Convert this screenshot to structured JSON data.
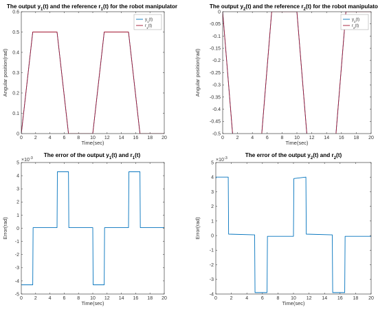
{
  "colors": {
    "output": "#0072BD",
    "reference": "#A2142F",
    "axes": "#404040"
  },
  "chart_data": [
    {
      "id": "p1",
      "type": "line",
      "title_parts": [
        "The output y",
        "1",
        "(t) and the reference r",
        "1",
        "(t) for the robot manipulator"
      ],
      "xlabel": "Time(sec)",
      "ylabel": "Angular position(rad)",
      "xlim": [
        0,
        20
      ],
      "ylim": [
        0,
        0.6
      ],
      "xticks": [
        0,
        2,
        4,
        6,
        8,
        10,
        12,
        14,
        16,
        18,
        20
      ],
      "yticks": [
        0,
        0.1,
        0.2,
        0.3,
        0.4,
        0.5,
        0.6
      ],
      "ytick_labels": [
        "0",
        "0.1",
        "0.2",
        "0.3",
        "0.4",
        "0.5",
        "0.6"
      ],
      "exponent": "",
      "legend": {
        "position": "top-right",
        "entries": [
          {
            "base": "y",
            "sub": "1",
            "suffix": "(t)",
            "color": "output"
          },
          {
            "base": "r",
            "sub": "1",
            "suffix": "(t)",
            "color": "reference"
          }
        ]
      },
      "series": [
        {
          "name": "y1(t)",
          "color": "output",
          "x": [
            0,
            1.6,
            5,
            6.6,
            10,
            11.6,
            15,
            16.6,
            20
          ],
          "y": [
            0,
            0.5,
            0.5,
            0,
            0,
            0.5,
            0.5,
            0,
            0
          ]
        },
        {
          "name": "r1(t)",
          "color": "reference",
          "x": [
            0,
            1.6,
            5,
            6.6,
            10,
            11.6,
            15,
            16.6,
            20
          ],
          "y": [
            0,
            0.5,
            0.5,
            0,
            0,
            0.5,
            0.5,
            0,
            0
          ]
        }
      ]
    },
    {
      "id": "p2",
      "type": "line",
      "title_parts": [
        "The output y",
        "2",
        "(t) and the reference r",
        "2",
        "(t) for the robot manipulator"
      ],
      "xlabel": "Time(sec)",
      "ylabel": "Angular position(rad)",
      "xlim": [
        0,
        20
      ],
      "ylim": [
        -0.5,
        0
      ],
      "xticks": [
        0,
        2,
        4,
        6,
        8,
        10,
        12,
        14,
        16,
        18,
        20
      ],
      "yticks": [
        -0.5,
        -0.45,
        -0.4,
        -0.35,
        -0.3,
        -0.25,
        -0.2,
        -0.15,
        -0.1,
        -0.05,
        0
      ],
      "ytick_labels": [
        "-0.5",
        "-0.45",
        "-0.4",
        "-0.35",
        "-0.3",
        "-0.25",
        "-0.2",
        "-0.15",
        "-0.1",
        "-0.05",
        "0"
      ],
      "exponent": "",
      "legend": {
        "position": "top-right",
        "entries": [
          {
            "base": "y",
            "sub": "2",
            "suffix": "(t)",
            "color": "output"
          },
          {
            "base": "r",
            "sub": "2",
            "suffix": "(t)",
            "color": "reference"
          }
        ]
      },
      "series": [
        {
          "name": "y2(t)",
          "color": "output",
          "x": [
            0,
            1.6,
            5,
            6.6,
            10,
            11.6,
            15,
            16.6,
            20
          ],
          "y": [
            0,
            -0.6,
            -0.6,
            0,
            0,
            -0.6,
            -0.6,
            0,
            0
          ]
        },
        {
          "name": "r2(t)",
          "color": "reference",
          "x": [
            0,
            1.6,
            5,
            6.6,
            10,
            11.6,
            15,
            16.6,
            20
          ],
          "y": [
            0,
            -0.6,
            -0.6,
            0,
            0,
            -0.6,
            -0.6,
            0,
            0
          ]
        }
      ]
    },
    {
      "id": "p3",
      "type": "line",
      "title_parts": [
        "The error of the output y",
        "1",
        "(t) and r",
        "1",
        "(t)"
      ],
      "xlabel": "Time(sec)",
      "ylabel": "Error(rad)",
      "xlim": [
        0,
        20
      ],
      "ylim": [
        -5,
        5
      ],
      "xticks": [
        0,
        2,
        4,
        6,
        8,
        10,
        12,
        14,
        16,
        18,
        20
      ],
      "yticks": [
        -5,
        -4,
        -3,
        -2,
        -1,
        0,
        1,
        2,
        3,
        4,
        5
      ],
      "ytick_labels": [
        "-5",
        "-4",
        "-3",
        "-2",
        "-1",
        "0",
        "1",
        "2",
        "3",
        "4",
        "5"
      ],
      "exponent": "-3",
      "legend": null,
      "series": [
        {
          "name": "e1(t)",
          "color": "output",
          "x": [
            0,
            0.05,
            1.6,
            1.65,
            5,
            5.05,
            6.6,
            6.65,
            10,
            10.05,
            11.6,
            11.65,
            15,
            15.05,
            16.6,
            16.65,
            20
          ],
          "y": [
            -4.3,
            -4.3,
            -4.3,
            0.05,
            0.05,
            4.3,
            4.3,
            0.05,
            0.05,
            -4.3,
            -4.3,
            0.05,
            0.05,
            4.3,
            4.3,
            0.05,
            0.05
          ]
        }
      ]
    },
    {
      "id": "p4",
      "type": "line",
      "title_parts": [
        "The error of the output y",
        "2",
        "(t) and r",
        "2",
        "(t)"
      ],
      "xlabel": "Time(sec)",
      "ylabel": "Error(rad)",
      "xlim": [
        0,
        20
      ],
      "ylim": [
        -4,
        5
      ],
      "xticks": [
        0,
        2,
        4,
        6,
        8,
        10,
        12,
        14,
        16,
        18,
        20
      ],
      "yticks": [
        -4,
        -3,
        -2,
        -1,
        0,
        1,
        2,
        3,
        4,
        5
      ],
      "ytick_labels": [
        "-4",
        "-3",
        "-2",
        "-1",
        "0",
        "1",
        "2",
        "3",
        "4",
        "5"
      ],
      "exponent": "-3",
      "legend": null,
      "series": [
        {
          "name": "e2(t)",
          "color": "output",
          "x": [
            0,
            0.05,
            1.6,
            1.65,
            5,
            5.05,
            6.6,
            6.65,
            10,
            10.05,
            11.6,
            11.65,
            15,
            15.05,
            16.6,
            16.65,
            20
          ],
          "y": [
            3.9,
            4.0,
            4.0,
            0.1,
            0.05,
            -3.9,
            -3.9,
            -0.05,
            -0.05,
            3.9,
            4.0,
            0.1,
            0.05,
            -3.9,
            -3.9,
            -0.05,
            -0.05
          ]
        }
      ]
    }
  ]
}
